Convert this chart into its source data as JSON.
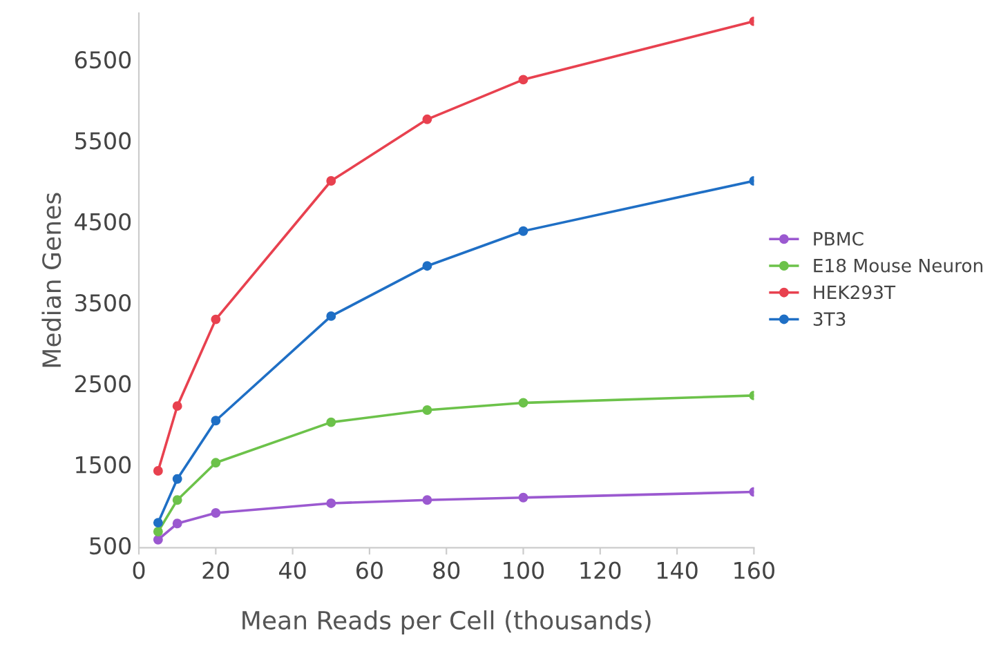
{
  "chart_data": {
    "type": "line",
    "xlabel": "Mean Reads per Cell (thousands)",
    "ylabel": "Median Genes",
    "x": [
      5,
      10,
      20,
      50,
      75,
      100,
      160
    ],
    "series": [
      {
        "name": "PBMC",
        "color": "#9b59d0",
        "values": [
          600,
          800,
          930,
          1050,
          1090,
          1120,
          1190
        ]
      },
      {
        "name": "E18 Mouse Neuron",
        "color": "#6cc24a",
        "values": [
          700,
          1090,
          1550,
          2050,
          2200,
          2290,
          2380
        ]
      },
      {
        "name": "HEK293T",
        "color": "#e8414f",
        "values": [
          1450,
          2250,
          3320,
          5030,
          5790,
          6280,
          7000
        ]
      },
      {
        "name": "3T3",
        "color": "#1f6fc5",
        "values": [
          810,
          1350,
          2070,
          3360,
          3980,
          4410,
          5030
        ]
      }
    ],
    "xlim": [
      0,
      160
    ],
    "xticks": [
      0,
      20,
      40,
      60,
      80,
      100,
      120,
      140,
      160
    ],
    "ylim": [
      500,
      7100
    ],
    "yticks": [
      500,
      1500,
      2500,
      3500,
      4500,
      5500,
      6500
    ],
    "grid": false,
    "legend": "right",
    "marker": "circle",
    "line_style": "solid"
  }
}
